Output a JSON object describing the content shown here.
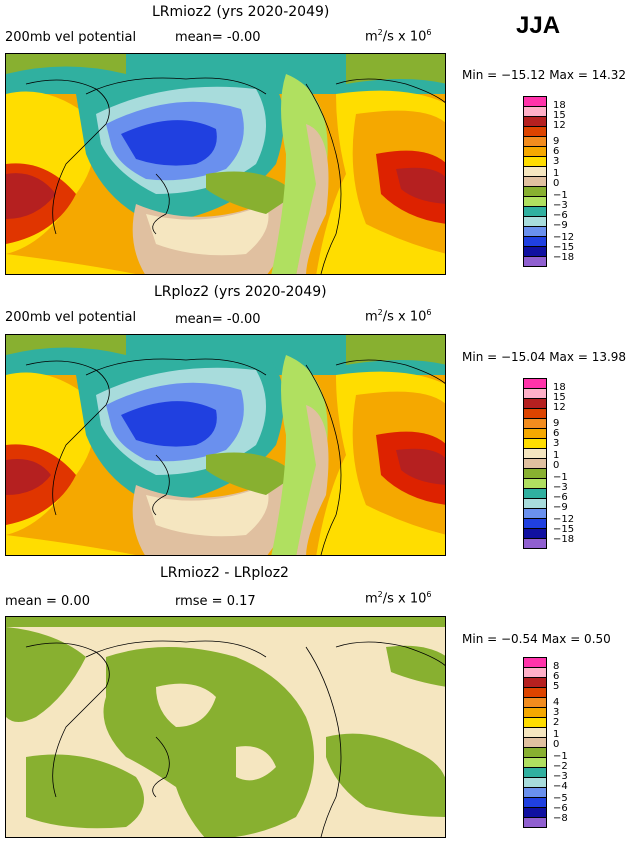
{
  "season": "JJA",
  "units_prefix": "m",
  "units_exp": "2",
  "units_mid": "/s x 10",
  "units_exp2": "6",
  "panels": [
    {
      "title": "LRmioz2 (yrs 2020-2049)",
      "left_label": "200mb vel potential",
      "mid_label": "mean=   -0.00",
      "minmax": "Min = −15.12  Max =  14.32"
    },
    {
      "title": "LRploz2 (yrs 2020-2049)",
      "left_label": "200mb vel potential",
      "mid_label": "mean=   -0.00",
      "minmax": "Min = −15.04  Max =  13.98"
    },
    {
      "title": "LRmioz2 - LRploz2",
      "left_label": "mean =   0.00",
      "mid_label": "rmse =    0.17",
      "minmax": "Min = −0.54  Max =   0.50"
    }
  ],
  "chart_data": [
    {
      "type": "heatmap",
      "title": "LRmioz2 (yrs 2020-2049)",
      "variable": "200mb vel potential",
      "mean": -0.0,
      "min": -15.12,
      "max": 14.32,
      "units": "m^2/s x 10^6",
      "colorbar_levels": [
        "18",
        "15",
        "12",
        "9",
        "6",
        "3",
        "1",
        "0",
        "−1",
        "−3",
        "−6",
        "−9",
        "−12",
        "−15",
        "−18"
      ]
    },
    {
      "type": "heatmap",
      "title": "LRploz2 (yrs 2020-2049)",
      "variable": "200mb vel potential",
      "mean": -0.0,
      "min": -15.04,
      "max": 13.98,
      "units": "m^2/s x 10^6",
      "colorbar_levels": [
        "18",
        "15",
        "12",
        "9",
        "6",
        "3",
        "1",
        "0",
        "−1",
        "−3",
        "−6",
        "−9",
        "−12",
        "−15",
        "−18"
      ]
    },
    {
      "type": "heatmap",
      "title": "LRmioz2 - LRploz2",
      "mean": 0.0,
      "rmse": 0.17,
      "min": -0.54,
      "max": 0.5,
      "units": "m^2/s x 10^6",
      "colorbar_levels": [
        "8",
        "6",
        "5",
        "4",
        "3",
        "2",
        "1",
        "0",
        "−1",
        "−2",
        "−3",
        "−4",
        "−5",
        "−6",
        "−8"
      ]
    }
  ],
  "colorbar_colors": [
    "#ff33aa",
    "#ffb0c8",
    "#dd2200",
    "#f28c1e",
    "#f5a800",
    "#ffdd00",
    "#f5e6c0",
    "#e0c0a0",
    "#88b030",
    "#b0e060",
    "#30b0a0",
    "#a8dcdc",
    "#6a90ee",
    "#2040e0",
    "#1010a0",
    "#9060d0"
  ]
}
